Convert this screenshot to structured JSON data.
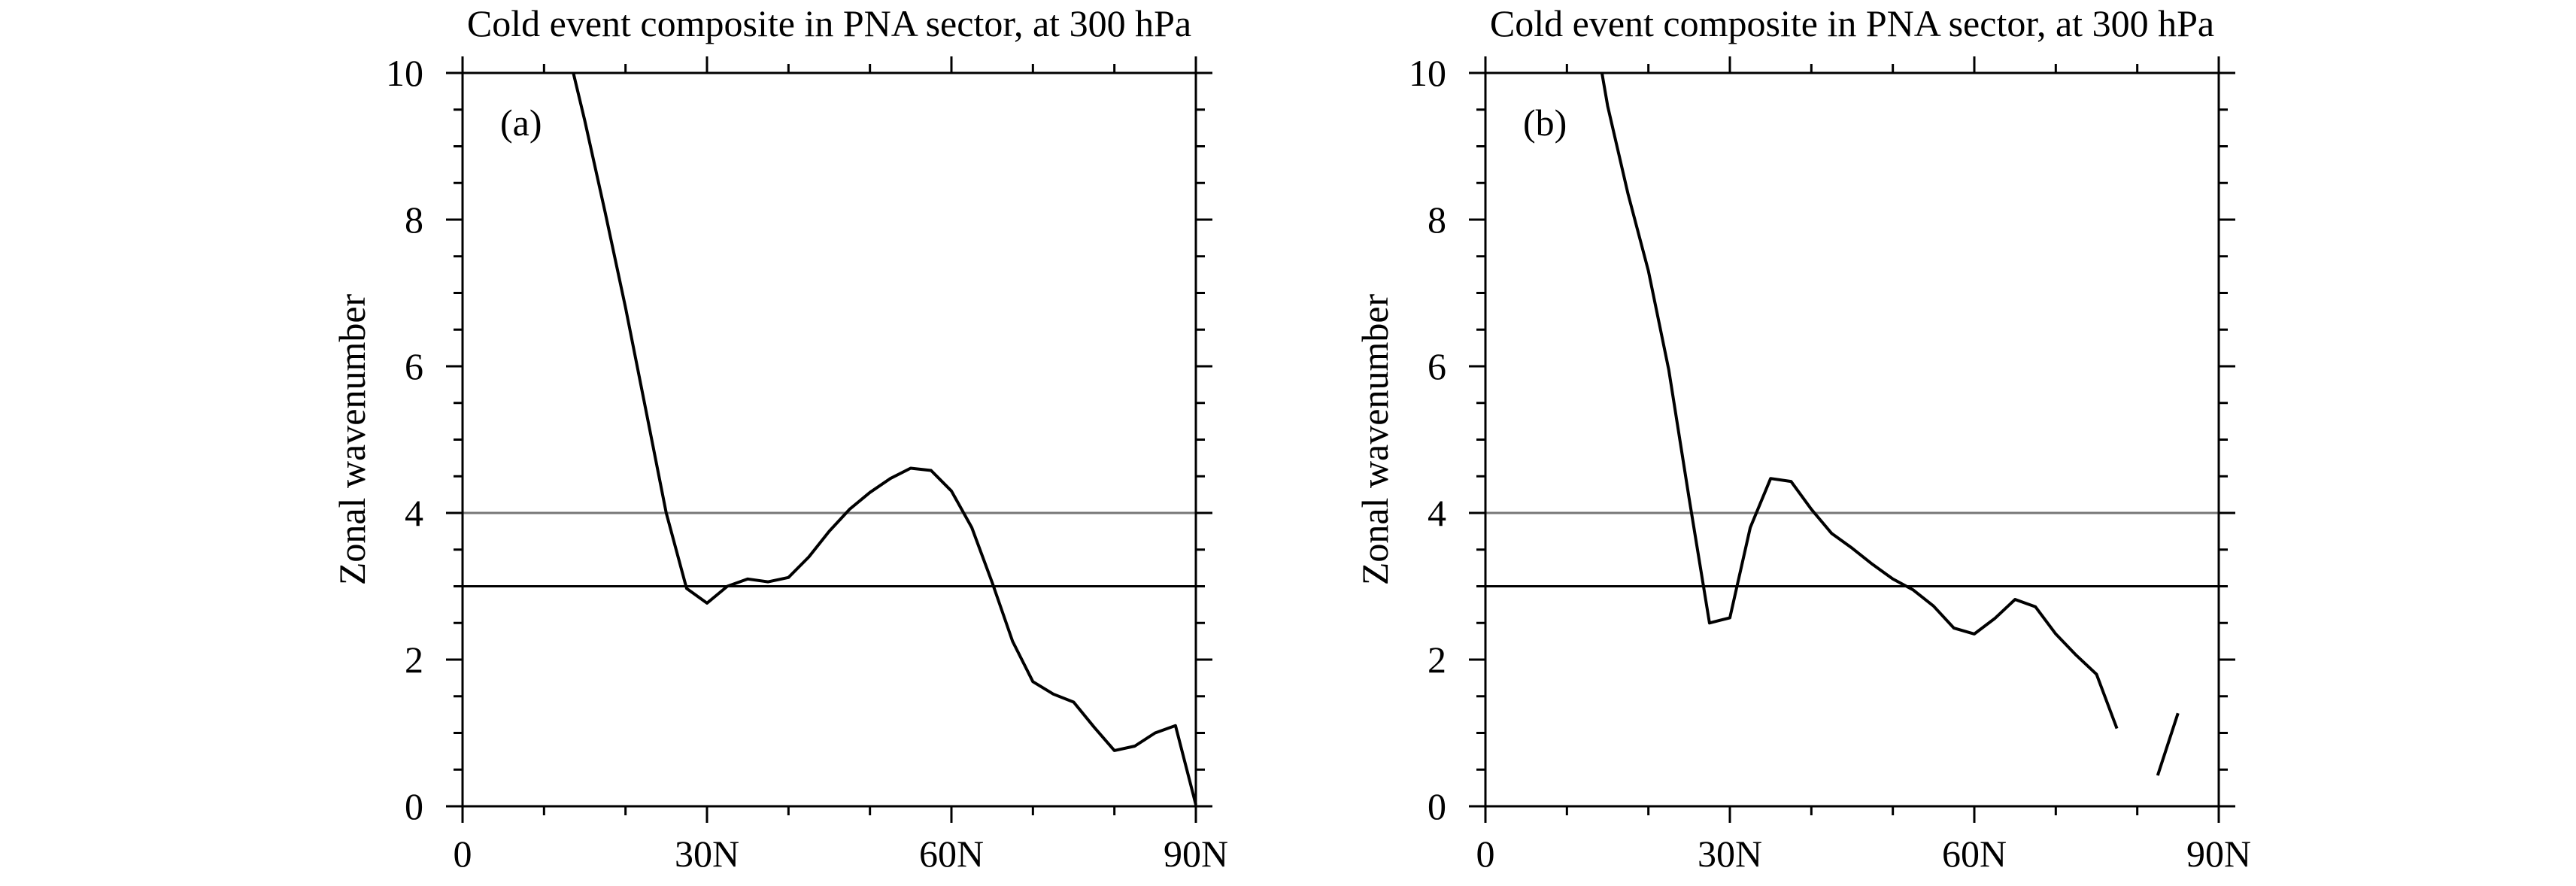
{
  "chart_data": [
    {
      "type": "line",
      "panel_label": "(a)",
      "title": "Cold event composite in PNA sector, at 300 hPa",
      "xlabel": "",
      "ylabel": "Zonal wavenumber",
      "xlim": [
        0,
        90
      ],
      "ylim": [
        0,
        10
      ],
      "xticks": [
        {
          "value": 0,
          "label": "0"
        },
        {
          "value": 30,
          "label": "30N"
        },
        {
          "value": 60,
          "label": "60N"
        },
        {
          "value": 90,
          "label": "90N"
        }
      ],
      "yticks": [
        {
          "value": 0,
          "label": "0"
        },
        {
          "value": 2,
          "label": "2"
        },
        {
          "value": 4,
          "label": "4"
        },
        {
          "value": 6,
          "label": "6"
        },
        {
          "value": 8,
          "label": "8"
        },
        {
          "value": 10,
          "label": "10"
        }
      ],
      "x_minor_step": 10,
      "y_minor_step": 0.5,
      "reference_lines": [
        {
          "y": 4,
          "color": "#777777"
        },
        {
          "y": 3,
          "color": "#000000"
        }
      ],
      "series": [
        {
          "name": "wavenumber",
          "segments": [
            [
              [
                13.6,
                10.0
              ],
              [
                15,
                9.35
              ],
              [
                17.5,
                8.1
              ],
              [
                20,
                6.8
              ],
              [
                22.5,
                5.4
              ],
              [
                25,
                4.0
              ],
              [
                27.5,
                2.97
              ],
              [
                30,
                2.77
              ],
              [
                32.5,
                3.0
              ],
              [
                35,
                3.1
              ],
              [
                37.5,
                3.06
              ],
              [
                40,
                3.12
              ],
              [
                42.5,
                3.4
              ],
              [
                45,
                3.75
              ],
              [
                47.5,
                4.05
              ],
              [
                50,
                4.28
              ],
              [
                52.5,
                4.47
              ],
              [
                55,
                4.61
              ],
              [
                57.5,
                4.58
              ],
              [
                60,
                4.3
              ],
              [
                62.5,
                3.8
              ],
              [
                65,
                3.05
              ],
              [
                67.5,
                2.25
              ],
              [
                70,
                1.7
              ],
              [
                72.5,
                1.53
              ],
              [
                75,
                1.42
              ],
              [
                77.5,
                1.08
              ],
              [
                80,
                0.76
              ],
              [
                82.5,
                0.82
              ],
              [
                85,
                1.0
              ],
              [
                87.5,
                1.1
              ],
              [
                90,
                0.02
              ]
            ]
          ]
        }
      ]
    },
    {
      "type": "line",
      "panel_label": "(b)",
      "title": "Cold event composite in PNA sector, at 300 hPa",
      "xlabel": "",
      "ylabel": "Zonal wavenumber",
      "xlim": [
        0,
        90
      ],
      "ylim": [
        0,
        10
      ],
      "xticks": [
        {
          "value": 0,
          "label": "0"
        },
        {
          "value": 30,
          "label": "30N"
        },
        {
          "value": 60,
          "label": "60N"
        },
        {
          "value": 90,
          "label": "90N"
        }
      ],
      "yticks": [
        {
          "value": 0,
          "label": "0"
        },
        {
          "value": 2,
          "label": "2"
        },
        {
          "value": 4,
          "label": "4"
        },
        {
          "value": 6,
          "label": "6"
        },
        {
          "value": 8,
          "label": "8"
        },
        {
          "value": 10,
          "label": "10"
        }
      ],
      "x_minor_step": 10,
      "y_minor_step": 0.5,
      "reference_lines": [
        {
          "y": 4,
          "color": "#777777"
        },
        {
          "y": 3,
          "color": "#000000"
        }
      ],
      "series": [
        {
          "name": "wavenumber",
          "segments": [
            [
              [
                14.3,
                10.0
              ],
              [
                15,
                9.55
              ],
              [
                17.5,
                8.35
              ],
              [
                20,
                7.3
              ],
              [
                22.5,
                5.95
              ],
              [
                25,
                4.2
              ],
              [
                27.5,
                2.5
              ],
              [
                30,
                2.57
              ],
              [
                32.5,
                3.8
              ],
              [
                35,
                4.47
              ],
              [
                37.5,
                4.43
              ],
              [
                40,
                4.05
              ],
              [
                42.5,
                3.72
              ],
              [
                45,
                3.52
              ],
              [
                47.5,
                3.3
              ],
              [
                50,
                3.1
              ],
              [
                52.5,
                2.95
              ],
              [
                55,
                2.73
              ],
              [
                57.5,
                2.43
              ],
              [
                60,
                2.35
              ],
              [
                62.5,
                2.56
              ],
              [
                65,
                2.82
              ],
              [
                67.5,
                2.72
              ],
              [
                70,
                2.35
              ],
              [
                72.5,
                2.06
              ],
              [
                75,
                1.8
              ],
              [
                77.5,
                1.06
              ]
            ],
            [
              [
                82.5,
                0.42
              ],
              [
                85,
                1.27
              ]
            ]
          ]
        }
      ]
    }
  ]
}
